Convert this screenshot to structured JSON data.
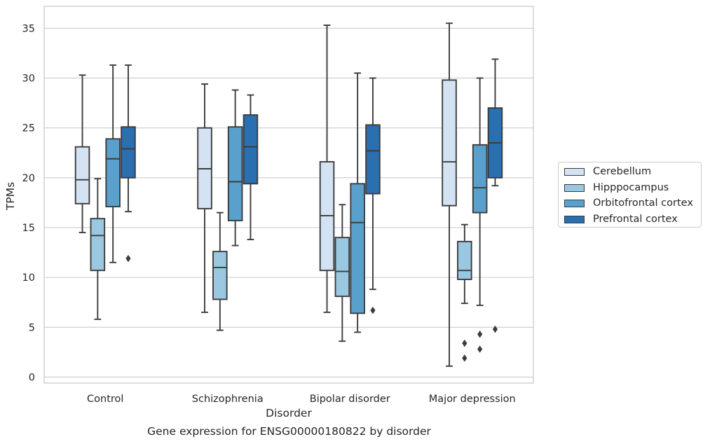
{
  "chart_data": {
    "type": "box",
    "title": "",
    "xlabel": "Disorder",
    "ylabel": "TPMs",
    "ylim": [
      -0.6,
      37.2
    ],
    "yticks": [
      0,
      5,
      10,
      15,
      20,
      25,
      30,
      35
    ],
    "grid": "horizontal",
    "legend_position": "right",
    "categories": [
      "Control",
      "Schizophrenia",
      "Bipolar disorder",
      "Major depression"
    ],
    "series": [
      {
        "name": "Cerebellum",
        "color": "#d3e3f3",
        "boxes": [
          {
            "whislo": 14.5,
            "q1": 17.4,
            "med": 19.8,
            "q3": 23.1,
            "whishi": 30.3,
            "fliers": []
          },
          {
            "whislo": 6.5,
            "q1": 16.9,
            "med": 20.9,
            "q3": 25.0,
            "whishi": 29.4,
            "fliers": []
          },
          {
            "whislo": 6.5,
            "q1": 10.7,
            "med": 16.2,
            "q3": 21.6,
            "whishi": 35.3,
            "fliers": []
          },
          {
            "whislo": 1.1,
            "q1": 17.2,
            "med": 21.6,
            "q3": 29.8,
            "whishi": 35.5,
            "fliers": []
          }
        ]
      },
      {
        "name": "Hipppocampus",
        "color": "#9ac8e0",
        "boxes": [
          {
            "whislo": 5.8,
            "q1": 10.7,
            "med": 14.2,
            "q3": 15.9,
            "whishi": 19.9,
            "fliers": []
          },
          {
            "whislo": 4.7,
            "q1": 7.8,
            "med": 11.0,
            "q3": 12.6,
            "whishi": 16.5,
            "fliers": []
          },
          {
            "whislo": 3.6,
            "q1": 8.1,
            "med": 10.6,
            "q3": 14.0,
            "whishi": 17.3,
            "fliers": []
          },
          {
            "whislo": 7.4,
            "q1": 9.8,
            "med": 10.7,
            "q3": 13.6,
            "whishi": 15.3,
            "fliers": [
              3.4,
              1.9
            ]
          }
        ]
      },
      {
        "name": "Orbitofrontal cortex",
        "color": "#5aa0cd",
        "boxes": [
          {
            "whislo": 11.5,
            "q1": 17.1,
            "med": 21.9,
            "q3": 23.9,
            "whishi": 31.3,
            "fliers": []
          },
          {
            "whislo": 13.2,
            "q1": 15.7,
            "med": 19.6,
            "q3": 25.1,
            "whishi": 28.8,
            "fliers": []
          },
          {
            "whislo": 4.5,
            "q1": 6.4,
            "med": 15.5,
            "q3": 19.4,
            "whishi": 30.5,
            "fliers": []
          },
          {
            "whislo": 7.2,
            "q1": 16.5,
            "med": 19.0,
            "q3": 23.3,
            "whishi": 30.0,
            "fliers": [
              4.3,
              2.8
            ]
          }
        ]
      },
      {
        "name": "Prefrontal cortex",
        "color": "#2a6fb0",
        "boxes": [
          {
            "whislo": 16.6,
            "q1": 20.0,
            "med": 22.9,
            "q3": 25.1,
            "whishi": 31.3,
            "fliers": [
              11.9
            ]
          },
          {
            "whislo": 13.8,
            "q1": 19.4,
            "med": 23.1,
            "q3": 26.3,
            "whishi": 28.3,
            "fliers": []
          },
          {
            "whislo": 8.8,
            "q1": 18.4,
            "med": 22.7,
            "q3": 25.3,
            "whishi": 30.0,
            "fliers": [
              6.7
            ]
          },
          {
            "whislo": 19.2,
            "q1": 20.0,
            "med": 23.5,
            "q3": 27.0,
            "whishi": 31.9,
            "fliers": [
              4.8
            ]
          }
        ]
      }
    ]
  },
  "caption": "Gene expression for ENSG00000180822 by disorder"
}
